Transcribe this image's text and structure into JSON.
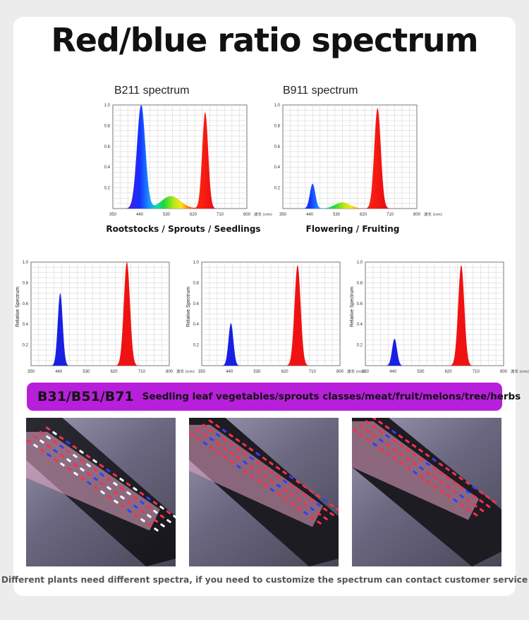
{
  "page": {
    "title": "Red/blue ratio spectrum",
    "banner_code": "B31/B51/B71",
    "banner_text": "Seedling leaf vegetables/sprouts classes/meat/fruit/melons/tree/herbs",
    "footer": "Different plants need different spectra, if you need to customize the spectrum can contact customer service"
  },
  "colors": {
    "blue": "#1422e6",
    "red": "#f01212",
    "banner": "#b81fdb"
  },
  "chart_data": [
    {
      "type": "area",
      "title": "B211 spectrum",
      "caption": "Rootstocks / Sprouts / Seedlings",
      "ylabel": "",
      "xunit": "波长 (nm)",
      "xlim": [
        350,
        800
      ],
      "ylim": [
        0,
        1.0
      ],
      "grid": true,
      "xticks": [
        "350",
        "440",
        "530",
        "620",
        "710",
        "800"
      ],
      "yticks": [
        "0.2",
        "0.4",
        "0.6",
        "0.8",
        "1.0"
      ],
      "peaks": [
        {
          "center": 445,
          "height": 1.0,
          "width": 14
        },
        {
          "center": 545,
          "height": 0.12,
          "width": 32
        },
        {
          "center": 660,
          "height": 0.93,
          "width": 10
        }
      ]
    },
    {
      "type": "area",
      "title": "B911 spectrum",
      "caption": "Flowering / Fruiting",
      "ylabel": "",
      "xunit": "波长 (nm)",
      "xlim": [
        350,
        800
      ],
      "ylim": [
        0,
        1.0
      ],
      "grid": true,
      "xticks": [
        "350",
        "440",
        "530",
        "620",
        "710",
        "800"
      ],
      "yticks": [
        "0.2",
        "0.4",
        "0.6",
        "0.8",
        "1.0"
      ],
      "peaks": [
        {
          "center": 450,
          "height": 0.24,
          "width": 9
        },
        {
          "center": 550,
          "height": 0.06,
          "width": 25
        },
        {
          "center": 668,
          "height": 0.97,
          "width": 11
        }
      ]
    },
    {
      "type": "area",
      "title": "",
      "caption": "",
      "ylabel": "Relative Spectrum",
      "xunit": "波长 (nm)",
      "xlim": [
        350,
        800
      ],
      "ylim": [
        0,
        1.0
      ],
      "grid": true,
      "xticks": [
        "350",
        "440",
        "530",
        "620",
        "710",
        "800"
      ],
      "yticks": [
        "0.2",
        "0.4",
        "0.6",
        "0.8",
        "1.0"
      ],
      "peaks": [
        {
          "center": 445,
          "height": 0.7,
          "width": 8
        },
        {
          "center": 662,
          "height": 1.0,
          "width": 10
        }
      ]
    },
    {
      "type": "area",
      "title": "",
      "caption": "",
      "ylabel": "Relative Spectrum",
      "xunit": "波长 (nm)",
      "xlim": [
        350,
        800
      ],
      "ylim": [
        0,
        1.0
      ],
      "grid": true,
      "xticks": [
        "350",
        "440",
        "530",
        "620",
        "710",
        "800"
      ],
      "yticks": [
        "0.2",
        "0.4",
        "0.6",
        "0.8",
        "1.0"
      ],
      "peaks": [
        {
          "center": 445,
          "height": 0.41,
          "width": 8
        },
        {
          "center": 662,
          "height": 0.97,
          "width": 10
        }
      ]
    },
    {
      "type": "area",
      "title": "",
      "caption": "",
      "ylabel": "Relative Spectrum",
      "xunit": "波长 (nm)",
      "xlim": [
        350,
        800
      ],
      "ylim": [
        0,
        1.0
      ],
      "grid": true,
      "xticks": [
        "350",
        "440",
        "530",
        "620",
        "710",
        "800"
      ],
      "yticks": [
        "0.2",
        "0.4",
        "0.6",
        "0.8",
        "1.0"
      ],
      "peaks": [
        {
          "center": 445,
          "height": 0.26,
          "width": 8
        },
        {
          "center": 662,
          "height": 0.97,
          "width": 10
        }
      ]
    }
  ]
}
